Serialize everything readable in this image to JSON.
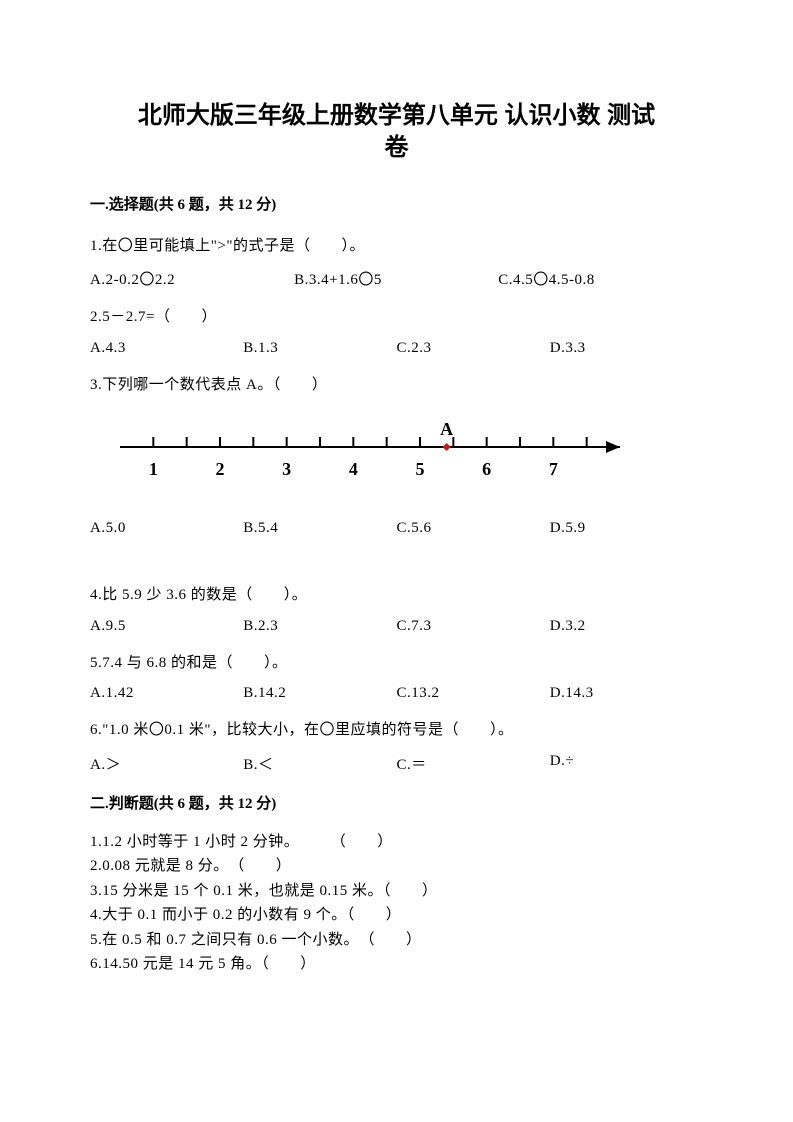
{
  "doc": {
    "title_line1": "北师大版三年级上册数学第八单元 认识小数 测试",
    "title_line2": "卷"
  },
  "section1": {
    "heading": "一.选择题(共 6 题，共 12 分)",
    "q1": {
      "text": "1.在〇里可能填上\">\"的式子是（　　）。",
      "a": "A.2-0.2〇2.2",
      "b": "B.3.4+1.6〇5",
      "c": "C.4.5〇4.5-0.8"
    },
    "q2": {
      "text": "2.5－2.7=（　　）",
      "a": "A.4.3",
      "b": "B.1.3",
      "c": "C.2.3",
      "d": "D.3.3"
    },
    "q3": {
      "text": "3.下列哪一个数代表点 A。（　　）",
      "a": "A.5.0",
      "b": "B.5.4",
      "c": "C.5.6",
      "d": "D.5.9"
    },
    "q4": {
      "text": "4.比 5.9 少 3.6 的数是（　　）。",
      "a": "A.9.5",
      "b": "B.2.3",
      "c": "C.7.3",
      "d": "D.3.2"
    },
    "q5": {
      "text": "5.7.4 与 6.8 的和是（　　）。",
      "a": "A.1.42",
      "b": "B.14.2",
      "c": "C.13.2",
      "d": "D.14.3"
    },
    "q6": {
      "text": "6.\"1.0 米〇0.1 米\"，比较大小，在〇里应填的符号是（　　）。",
      "a": "A.＞",
      "b": "B.＜",
      "c": "C.＝",
      "d": "D.÷"
    }
  },
  "diagram": {
    "type": "number-line",
    "label_A": "A",
    "point_color": "#d01515",
    "axis_color": "#000000",
    "ticks": [
      1,
      2,
      3,
      4,
      5,
      6,
      7
    ],
    "point_x": 5.4,
    "x_min": 0.5,
    "x_max": 8,
    "tick_font_size": 18,
    "label_font_size": 18,
    "line_width": 2,
    "tick_length": 10
  },
  "section2": {
    "heading": "二.判断题(共 6 题，共 12 分)",
    "q1": "1.1.2 小时等于 1 小时 2 分钟。　　　（　　）",
    "q2": "2.0.08 元就是 8 分。　（　　）",
    "q3": "3.15 分米是 15 个 0.1 米，也就是 0.15 米。（　　）",
    "q4": "4.大于 0.1 而小于 0.2 的小数有 9 个。（　　）",
    "q5": "5.在 0.5 和 0.7 之间只有 0.6 一个小数。　（　　）",
    "q6": "6.14.50 元是 14 元 5 角。（　　）"
  }
}
